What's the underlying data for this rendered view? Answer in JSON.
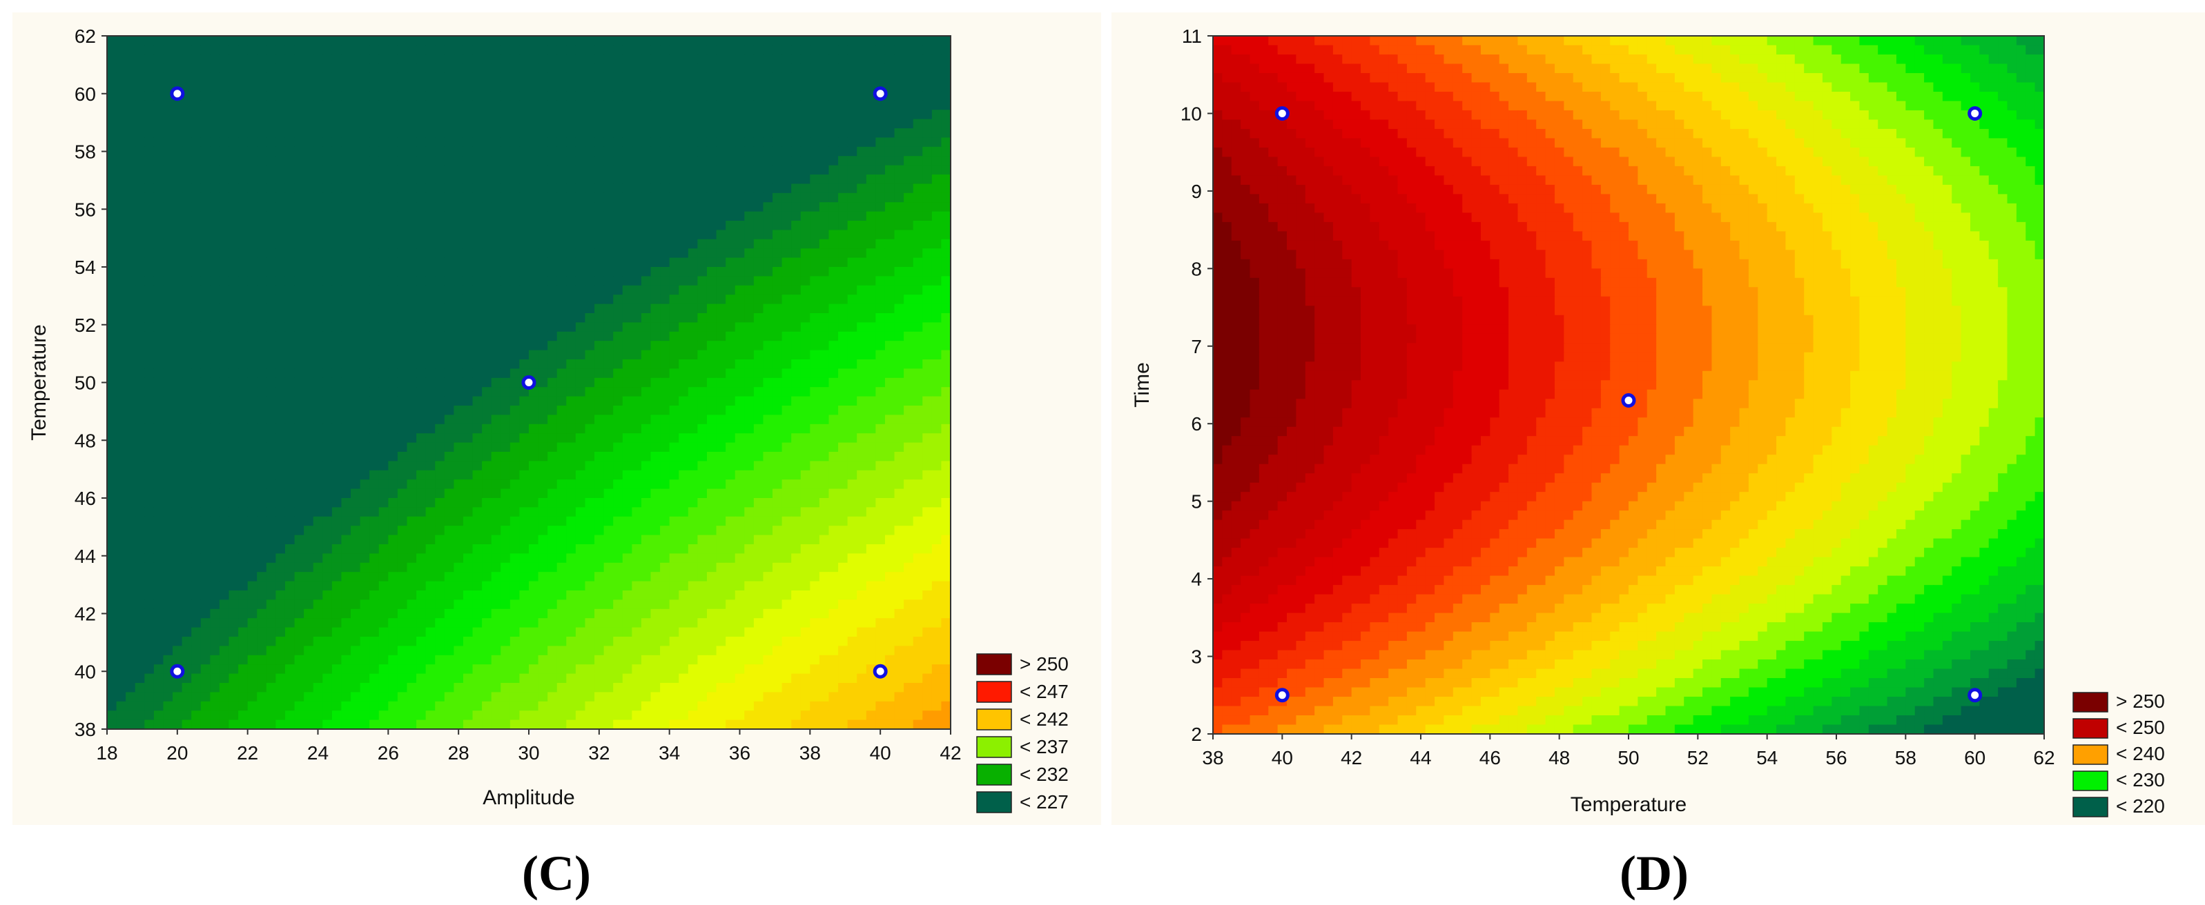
{
  "chart_data": [
    {
      "type": "contour",
      "panel_label": "(C)",
      "xlabel": "Amplitude",
      "ylabel": "Temperature",
      "xlim": [
        18,
        42
      ],
      "ylim": [
        38,
        62
      ],
      "xticks": [
        "18",
        "20",
        "22",
        "24",
        "26",
        "28",
        "30",
        "32",
        "34",
        "36",
        "38",
        "40",
        "42"
      ],
      "yticks": [
        "38",
        "40",
        "42",
        "44",
        "46",
        "48",
        "50",
        "52",
        "54",
        "56",
        "58",
        "60",
        "62"
      ],
      "points": [
        {
          "x": 20,
          "y": 60
        },
        {
          "x": 40,
          "y": 60
        },
        {
          "x": 30,
          "y": 50
        },
        {
          "x": 20,
          "y": 40
        },
        {
          "x": 40,
          "y": 40
        }
      ],
      "legend": [
        {
          "label": "> 250",
          "color": "#7a0000"
        },
        {
          "label": "< 247",
          "color": "#ff1a00"
        },
        {
          "label": "< 242",
          "color": "#ffc400"
        },
        {
          "label": "< 237",
          "color": "#8cf000"
        },
        {
          "label": "< 232",
          "color": "#08b000"
        },
        {
          "label": "< 227",
          "color": "#00604a"
        }
      ]
    },
    {
      "type": "contour",
      "panel_label": "(D)",
      "xlabel": "Temperature",
      "ylabel": "Time",
      "xlim": [
        38,
        62
      ],
      "ylim": [
        2,
        11
      ],
      "xticks": [
        "38",
        "40",
        "42",
        "44",
        "46",
        "48",
        "50",
        "52",
        "54",
        "56",
        "58",
        "60",
        "62"
      ],
      "yticks": [
        "2",
        "3",
        "4",
        "5",
        "6",
        "7",
        "8",
        "9",
        "10",
        "11"
      ],
      "points": [
        {
          "x": 40,
          "y": 10
        },
        {
          "x": 60,
          "y": 10
        },
        {
          "x": 50,
          "y": 6.3
        },
        {
          "x": 40,
          "y": 2.5
        },
        {
          "x": 60,
          "y": 2.5
        }
      ],
      "legend": [
        {
          "label": "> 250",
          "color": "#7a0000"
        },
        {
          "label": "< 250",
          "color": "#c00000"
        },
        {
          "label": "< 240",
          "color": "#ffa000"
        },
        {
          "label": "< 230",
          "color": "#00f000"
        },
        {
          "label": "< 220",
          "color": "#00604a"
        }
      ]
    }
  ]
}
